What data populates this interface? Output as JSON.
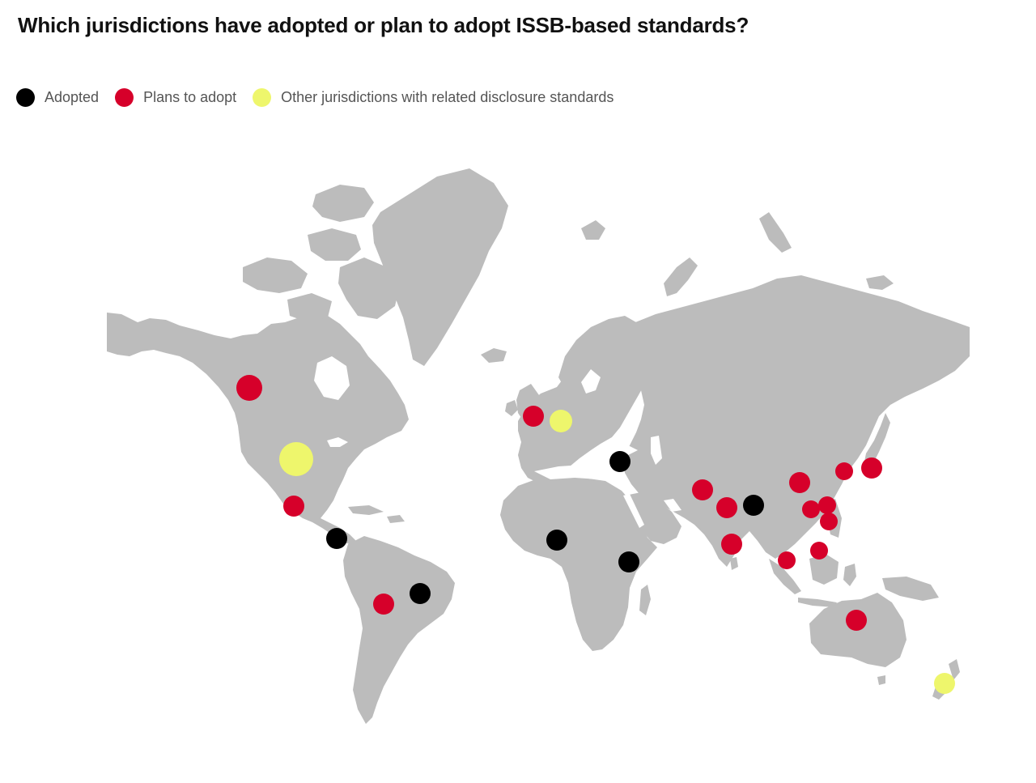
{
  "title": "Which jurisdictions have adopted or plan to adopt ISSB-based standards?",
  "colors": {
    "land": "#bcbcbc",
    "adopted": "#000000",
    "plans": "#d6002a",
    "other": "#eef66c",
    "background": "#ffffff"
  },
  "legend": [
    {
      "key": "adopted",
      "label": "Adopted"
    },
    {
      "key": "plans",
      "label": "Plans to adopt"
    },
    {
      "key": "other",
      "label": "Other jurisdictions with related disclosure standards"
    }
  ],
  "markers": [
    {
      "status": "plans"
    },
    {
      "status": "other"
    },
    {
      "status": "plans"
    },
    {
      "status": "adopted"
    },
    {
      "status": "plans"
    },
    {
      "status": "adopted"
    },
    {
      "status": "plans"
    },
    {
      "status": "other"
    },
    {
      "status": "adopted"
    },
    {
      "status": "adopted"
    },
    {
      "status": "adopted"
    },
    {
      "status": "plans"
    },
    {
      "status": "plans"
    },
    {
      "status": "plans"
    },
    {
      "status": "adopted"
    },
    {
      "status": "plans"
    },
    {
      "status": "plans"
    },
    {
      "status": "plans"
    },
    {
      "status": "plans"
    },
    {
      "status": "plans"
    },
    {
      "status": "plans"
    },
    {
      "status": "plans"
    },
    {
      "status": "plans"
    },
    {
      "status": "plans"
    },
    {
      "status": "other"
    }
  ]
}
